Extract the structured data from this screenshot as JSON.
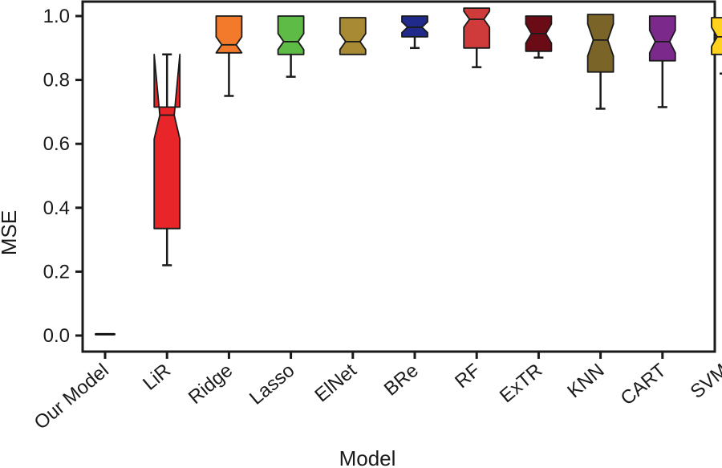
{
  "chart_data": {
    "type": "box",
    "title": "",
    "xlabel": "Model",
    "ylabel": "MSE",
    "ylim": [
      -0.05,
      1.03
    ],
    "yticks": [
      "0.0",
      "0.2",
      "0.4",
      "0.6",
      "0.8",
      "1.0"
    ],
    "notched": true,
    "grid": false,
    "categories": [
      "Our Model",
      "LiR",
      "Ridge",
      "Lasso",
      "ElNet",
      "BRe",
      "RF",
      "ExTR",
      "KNN",
      "CART",
      "SVM"
    ],
    "boxes": [
      {
        "name": "Our Model",
        "whislo": 0.003,
        "q1": 0.003,
        "med": 0.004,
        "q3": 0.005,
        "whishi": 0.005,
        "notch_lo": 0.003,
        "notch_hi": 0.005,
        "color": "#111111"
      },
      {
        "name": "LiR",
        "whislo": 0.22,
        "q1": 0.335,
        "med": 0.69,
        "q3": 0.715,
        "whishi": 0.88,
        "notch_lo": 0.615,
        "notch_hi": 0.88,
        "color": "#e8262a"
      },
      {
        "name": "Ridge",
        "whislo": 0.75,
        "q1": 0.885,
        "med": 0.91,
        "q3": 1.0,
        "whishi": 1.0,
        "notch_lo": 0.885,
        "notch_hi": 0.935,
        "color": "#f47a2b"
      },
      {
        "name": "Lasso",
        "whislo": 0.81,
        "q1": 0.88,
        "med": 0.92,
        "q3": 1.0,
        "whishi": 1.0,
        "notch_lo": 0.895,
        "notch_hi": 0.945,
        "color": "#5dbb46"
      },
      {
        "name": "ElNet",
        "whislo": 0.88,
        "q1": 0.88,
        "med": 0.92,
        "q3": 0.995,
        "whishi": 0.995,
        "notch_lo": 0.895,
        "notch_hi": 0.945,
        "color": "#a88a34"
      },
      {
        "name": "BRe",
        "whislo": 0.9,
        "q1": 0.935,
        "med": 0.965,
        "q3": 1.0,
        "whishi": 1.0,
        "notch_lo": 0.948,
        "notch_hi": 0.982,
        "color": "#1f2a8a"
      },
      {
        "name": "RF",
        "whislo": 0.84,
        "q1": 0.9,
        "med": 0.99,
        "q3": 1.025,
        "whishi": 1.025,
        "notch_lo": 0.965,
        "notch_hi": 1.015,
        "color": "#cf3a3a"
      },
      {
        "name": "ExTR",
        "whislo": 0.87,
        "q1": 0.89,
        "med": 0.945,
        "q3": 1.0,
        "whishi": 1.0,
        "notch_lo": 0.915,
        "notch_hi": 0.975,
        "color": "#6b0b16"
      },
      {
        "name": "KNN",
        "whislo": 0.71,
        "q1": 0.825,
        "med": 0.925,
        "q3": 1.005,
        "whishi": 1.005,
        "notch_lo": 0.875,
        "notch_hi": 0.975,
        "color": "#7a6428"
      },
      {
        "name": "CART",
        "whislo": 0.715,
        "q1": 0.86,
        "med": 0.92,
        "q3": 1.0,
        "whishi": 1.0,
        "notch_lo": 0.885,
        "notch_hi": 0.955,
        "color": "#7b2a8c"
      },
      {
        "name": "SVM",
        "whislo": 0.82,
        "q1": 0.88,
        "med": 0.935,
        "q3": 0.995,
        "whishi": 0.995,
        "notch_lo": 0.905,
        "notch_hi": 0.965,
        "color": "#ffd21f"
      }
    ]
  }
}
